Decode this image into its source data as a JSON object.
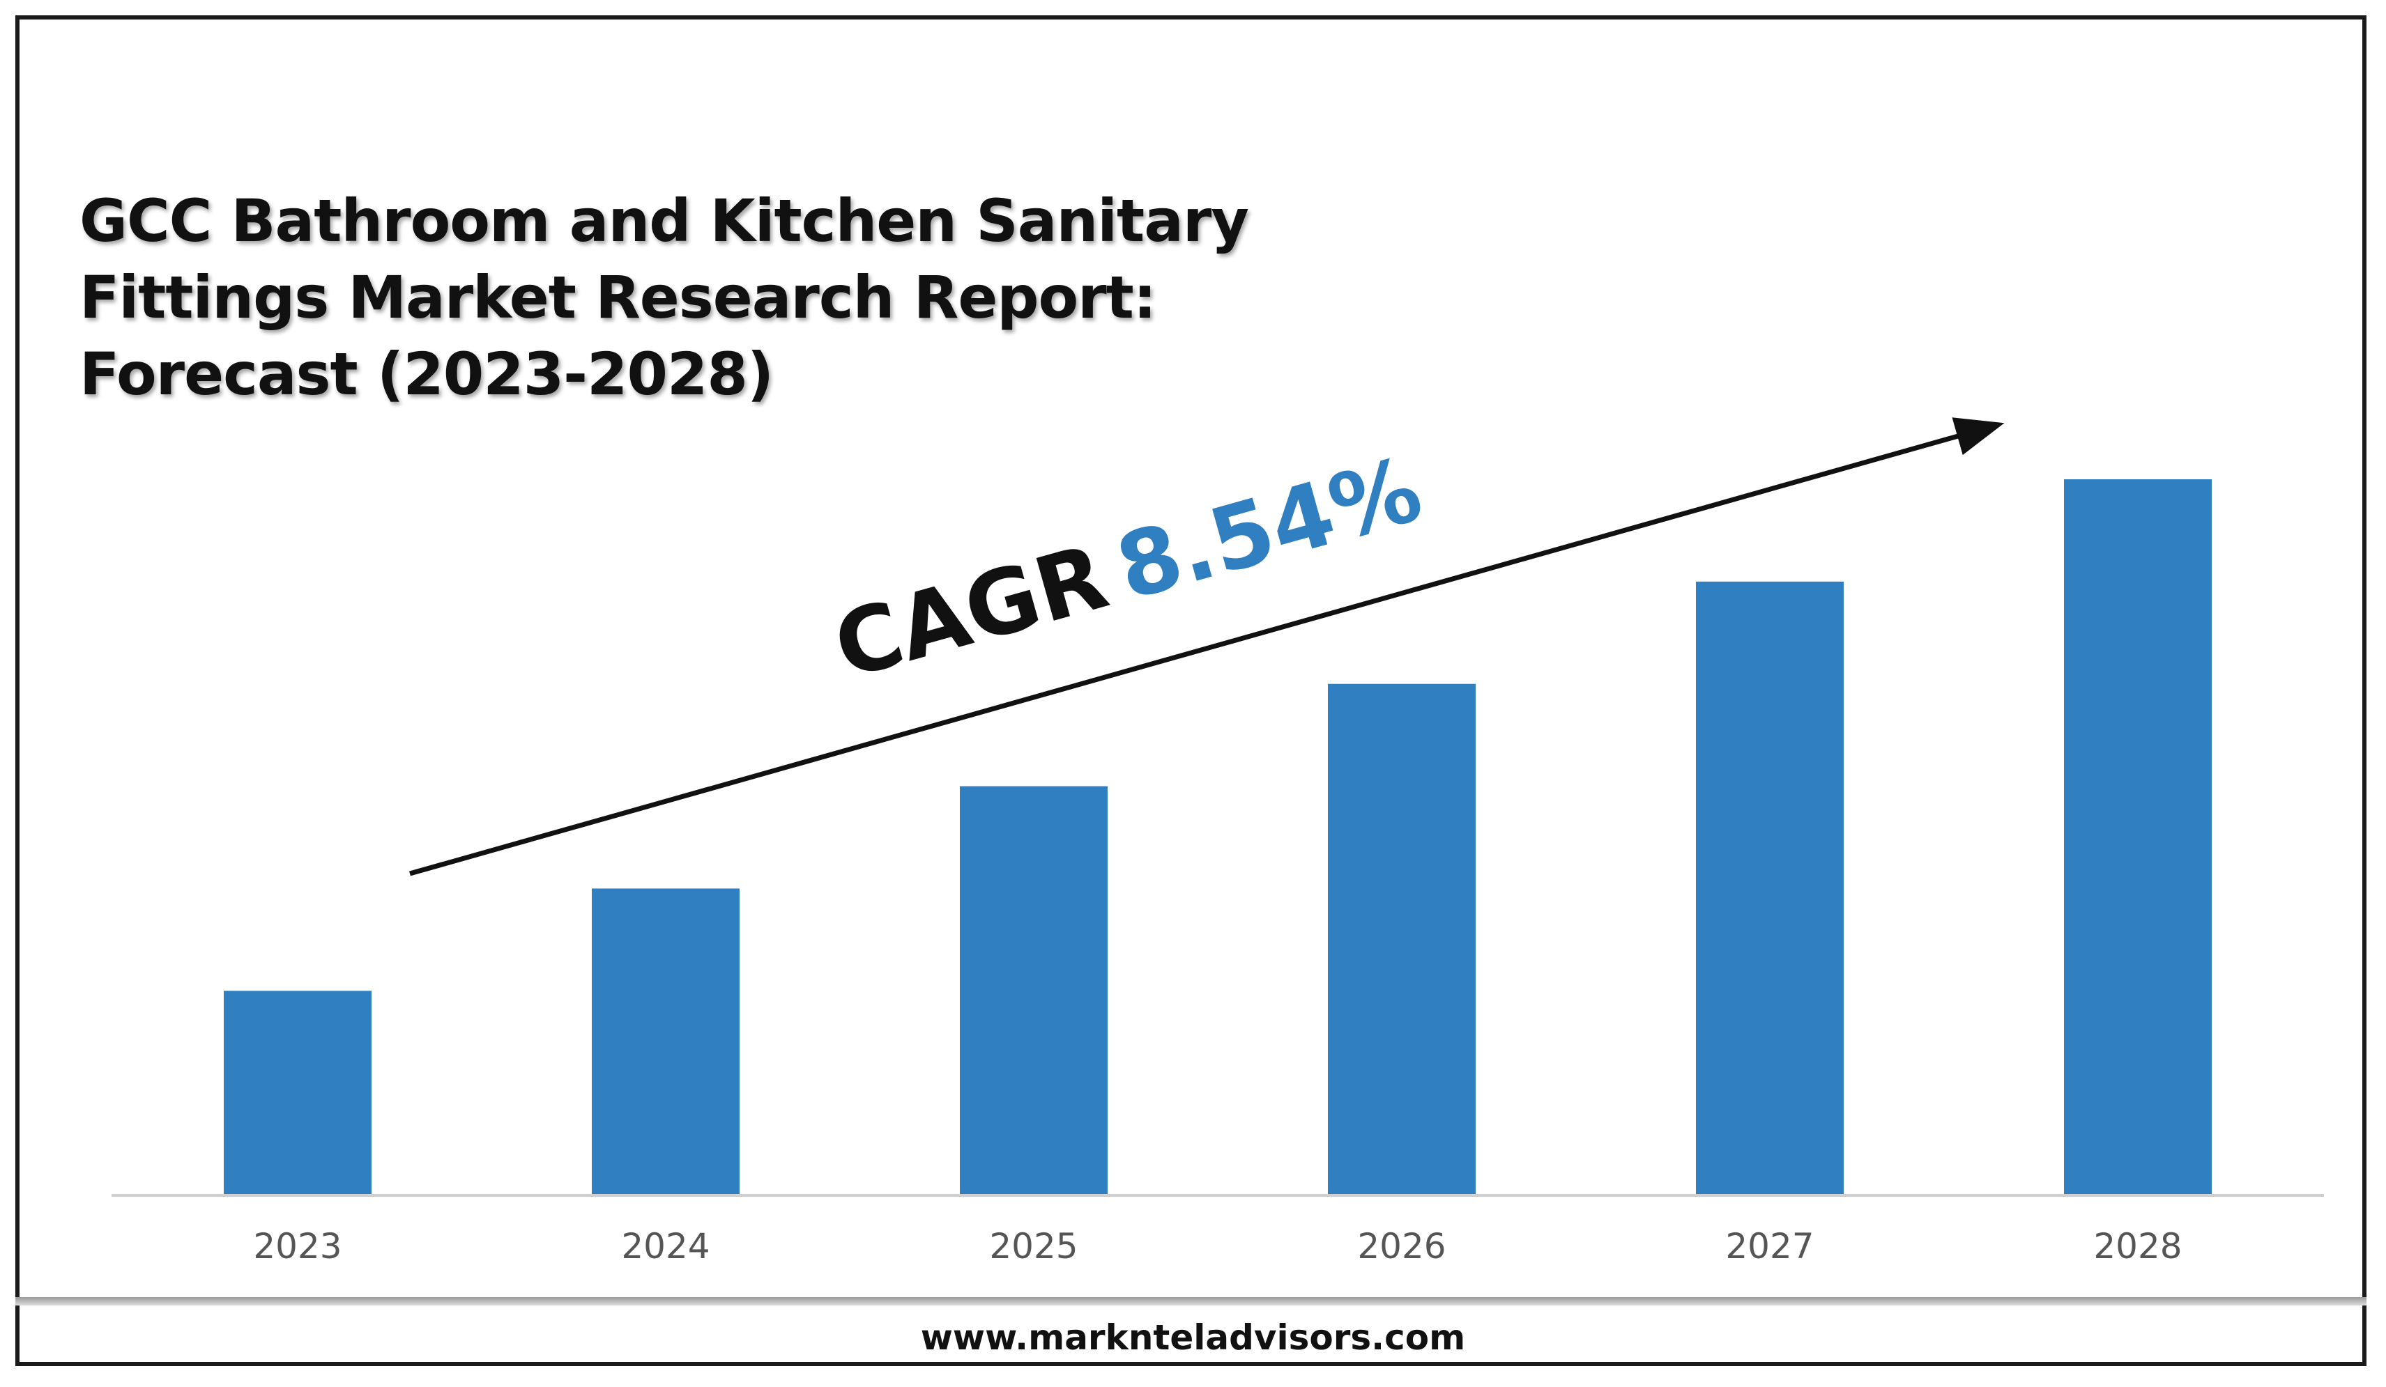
{
  "title_lines": [
    "GCC Bathroom and Kitchen Sanitary",
    "Fittings Market Research Report:",
    "Forecast (2023-2028)"
  ],
  "cagr": {
    "label": "CAGR",
    "value": "8.54%"
  },
  "footer": {
    "url": "www.marknteladvisors.com"
  },
  "colors": {
    "bar": "#2f7fc1",
    "cagr_value": "#2f7fc1",
    "text": "#111111",
    "axis": "#d0d0d0",
    "tick_label": "#555555"
  },
  "chart_data": {
    "type": "bar",
    "categories": [
      "2023",
      "2024",
      "2025",
      "2026",
      "2027",
      "2028"
    ],
    "values": [
      1.0,
      1.5,
      2.0,
      2.5,
      3.0,
      3.5
    ],
    "ylim": [
      0,
      3.5
    ],
    "grid": false,
    "legend": "none",
    "annotation": "CAGR 8.54%"
  }
}
